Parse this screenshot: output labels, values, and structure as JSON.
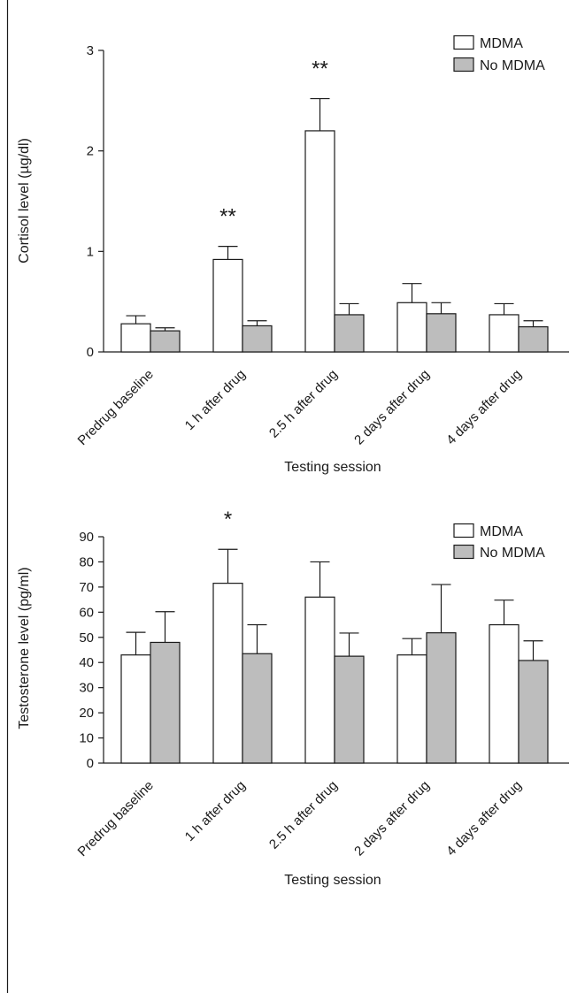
{
  "legend": {
    "mdma": "MDMA",
    "no_mdma": "No MDMA"
  },
  "colors": {
    "mdma_fill": "#ffffff",
    "no_mdma_fill": "#bdbdbd",
    "stroke": "#1a1a1a"
  },
  "chart_data": [
    {
      "type": "bar",
      "title": "",
      "xlabel": "Testing session",
      "ylabel": "Cortisol level (µg/dl)",
      "ylim": [
        0,
        3
      ],
      "yticks": [
        0,
        1,
        2,
        3
      ],
      "ytick_labels": [
        "0",
        "1",
        "2",
        "3"
      ],
      "legend_position": "top-right",
      "categories": [
        "Predrug baseline",
        "1 h after drug",
        "2.5 h after drug",
        "2 days after drug",
        "4 days after drug"
      ],
      "series": [
        {
          "name": "MDMA",
          "values": [
            0.28,
            0.92,
            2.2,
            0.49,
            0.37
          ],
          "error": [
            0.08,
            0.13,
            0.32,
            0.19,
            0.11
          ]
        },
        {
          "name": "No MDMA",
          "values": [
            0.21,
            0.26,
            0.37,
            0.38,
            0.25
          ],
          "error": [
            0.03,
            0.05,
            0.11,
            0.11,
            0.06
          ]
        }
      ],
      "annotations": [
        "",
        "**",
        "**",
        "",
        ""
      ]
    },
    {
      "type": "bar",
      "title": "",
      "xlabel": "Testing session",
      "ylabel": "Testosterone level (pg/ml)",
      "ylim": [
        0,
        90
      ],
      "yticks": [
        0,
        10,
        20,
        30,
        40,
        50,
        60,
        70,
        80,
        90
      ],
      "ytick_labels": [
        "0",
        "10",
        "20",
        "30",
        "40",
        "50",
        "60",
        "70",
        "80",
        "90"
      ],
      "legend_position": "top-right",
      "categories": [
        "Predrug baseline",
        "1 h after drug",
        "2.5 h after drug",
        "2 days after drug",
        "4 days after drug"
      ],
      "series": [
        {
          "name": "MDMA",
          "values": [
            43,
            71.5,
            66,
            43,
            55
          ],
          "error": [
            9,
            13.5,
            14,
            6.5,
            9.8
          ]
        },
        {
          "name": "No MDMA",
          "values": [
            48,
            43.5,
            42.5,
            51.8,
            40.8
          ],
          "error": [
            12.2,
            11.5,
            9.2,
            19.2,
            7.8
          ]
        }
      ],
      "annotations": [
        "",
        "*",
        "",
        "",
        ""
      ]
    }
  ]
}
